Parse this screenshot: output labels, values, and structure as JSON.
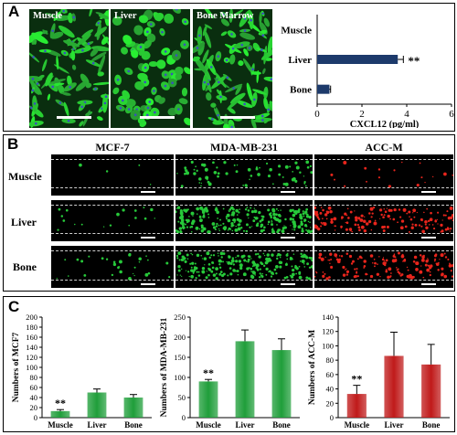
{
  "panels": {
    "a": "A",
    "b": "B",
    "c": "C"
  },
  "panel_a": {
    "images": [
      "Muscle",
      "Liver",
      "Bone Marrow"
    ]
  },
  "panel_b": {
    "columns": [
      "MCF-7",
      "MDA-MB-231",
      "ACC-M"
    ],
    "rows": [
      "Muscle",
      "Liver",
      "Bone"
    ]
  },
  "colors": {
    "green_fluor": "#27c93a",
    "red_fluor": "#e8251c",
    "bar_blue": "#1d3a6b",
    "bar_green": "#1f9e3a",
    "bar_red": "#c01a1a"
  },
  "chart_data": [
    {
      "type": "bar",
      "orientation": "horizontal",
      "categories": [
        "Muscle",
        "Liver",
        "Bone"
      ],
      "values": [
        0,
        3.6,
        0.55
      ],
      "errors": [
        0,
        0.25,
        0.05
      ],
      "annotations": [
        "",
        "**",
        ""
      ],
      "xlabel": "CXCL12 (pg/ml)",
      "xlim": [
        0,
        6
      ],
      "xticks": [
        "0",
        "2",
        "4",
        "6"
      ],
      "color": "#1d3a6b"
    },
    {
      "type": "bar",
      "categories": [
        "Muscle",
        "Liver",
        "Bone"
      ],
      "values": [
        13,
        50,
        40
      ],
      "errors": [
        3,
        7,
        6
      ],
      "annotations": [
        "**",
        "",
        ""
      ],
      "ylabel": "Numbers of MCF7",
      "ylim": [
        0,
        200
      ],
      "yticks": [
        "0",
        "20",
        "40",
        "60",
        "80",
        "100",
        "120",
        "140",
        "160",
        "180",
        "200"
      ],
      "color": "#1f9e3a"
    },
    {
      "type": "bar",
      "categories": [
        "Muscle",
        "Liver",
        "Bone"
      ],
      "values": [
        90,
        190,
        168
      ],
      "errors": [
        5,
        28,
        28
      ],
      "annotations": [
        "**",
        "",
        ""
      ],
      "ylabel": "Numbers of MDA-MB-231",
      "ylim": [
        0,
        250
      ],
      "yticks": [
        "0",
        "50",
        "100",
        "150",
        "200",
        "250"
      ],
      "color": "#1f9e3a"
    },
    {
      "type": "bar",
      "categories": [
        "Muscle",
        "Liver",
        "Bone"
      ],
      "values": [
        33,
        86,
        74
      ],
      "errors": [
        12,
        33,
        28
      ],
      "annotations": [
        "**",
        "",
        ""
      ],
      "ylabel": "Numbers of ACC-M",
      "ylim": [
        0,
        140
      ],
      "yticks": [
        "0",
        "20",
        "40",
        "60",
        "80",
        "100",
        "120",
        "140"
      ],
      "color": "#c01a1a"
    }
  ]
}
